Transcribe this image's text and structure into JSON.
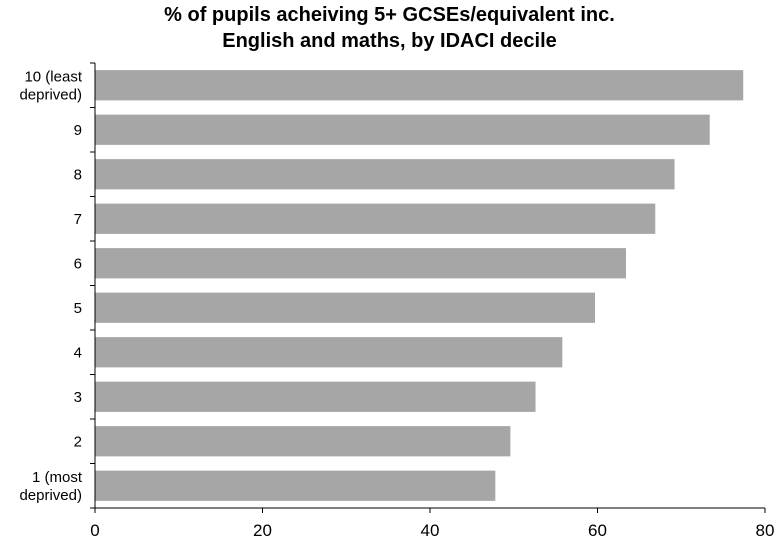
{
  "chart_data": {
    "type": "bar",
    "orientation": "horizontal",
    "title_line1": "% of pupils acheiving 5+ GCSEs/equivalent inc.",
    "title_line2": "English and maths, by IDACI decile",
    "categories": [
      [
        "10 (least",
        "deprived)"
      ],
      [
        "9"
      ],
      [
        "8"
      ],
      [
        "7"
      ],
      [
        "6"
      ],
      [
        "5"
      ],
      [
        "4"
      ],
      [
        "3"
      ],
      [
        "2"
      ],
      [
        "1 (most",
        "deprived)"
      ]
    ],
    "values": [
      77.4,
      73.4,
      69.2,
      66.9,
      63.4,
      59.7,
      55.8,
      52.6,
      49.6,
      47.8
    ],
    "xlim": [
      0,
      80
    ],
    "xticks": [
      "0",
      "20",
      "40",
      "60",
      "80"
    ],
    "bar_color": "#a6a6a6",
    "grid": false,
    "legend": "none"
  }
}
